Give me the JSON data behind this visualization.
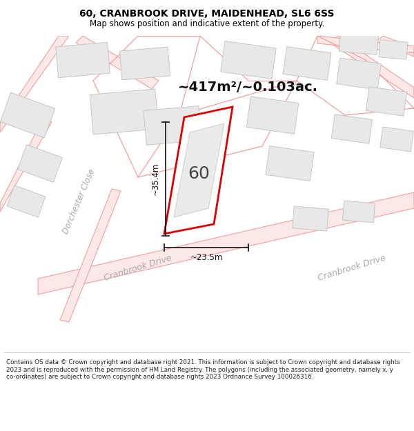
{
  "title_line1": "60, CRANBROOK DRIVE, MAIDENHEAD, SL6 6SS",
  "title_line2": "Map shows position and indicative extent of the property.",
  "area_text": "~417m²/~0.103ac.",
  "property_number": "60",
  "dim_width": "~23.5m",
  "dim_height": "~35.4m",
  "footer_text": "Contains OS data © Crown copyright and database right 2021. This information is subject to Crown copyright and database rights 2023 and is reproduced with the permission of HM Land Registry. The polygons (including the associated geometry, namely x, y co-ordinates) are subject to Crown copyright and database rights 2023 Ordnance Survey 100026316.",
  "road_line_color": "#f0a0a0",
  "road_fill_color": "#fde8e8",
  "building_fill": "#e8e8e8",
  "building_edge": "#c0c0c0",
  "property_edge": "#dd0000",
  "dim_line_color": "#111111",
  "street_color": "#aaaaaa",
  "text_color": "#111111",
  "title_fontsize": 10,
  "subtitle_fontsize": 8.5,
  "area_fontsize": 14,
  "number_fontsize": 18,
  "dim_fontsize": 8.5,
  "street_fontsize": 9,
  "footer_fontsize": 6.3
}
